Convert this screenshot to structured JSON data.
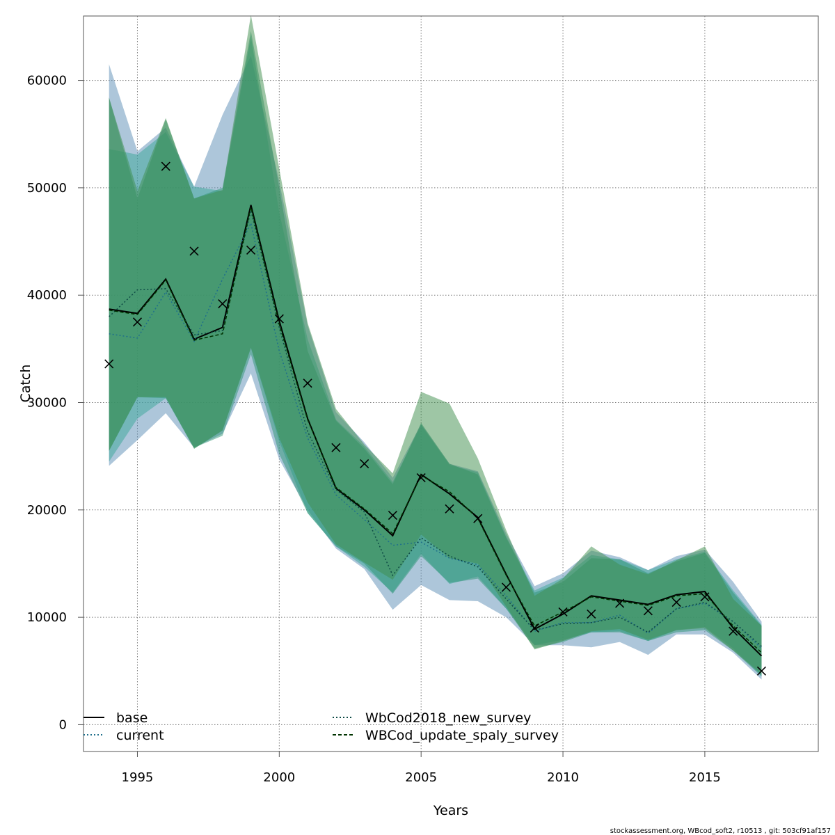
{
  "chart_data": {
    "type": "line",
    "xlabel": "Years",
    "ylabel": "Catch",
    "xlim": [
      1993.1,
      2019.0
    ],
    "ylim": [
      -2500,
      66000
    ],
    "xticks": [
      1995,
      2000,
      2005,
      2010,
      2015
    ],
    "yticks": [
      0,
      10000,
      20000,
      30000,
      40000,
      50000,
      60000
    ],
    "grid": true,
    "legend_position": "bottom",
    "x": [
      1994,
      1995,
      1996,
      1997,
      1998,
      1999,
      2000,
      2001,
      2002,
      2003,
      2004,
      2005,
      2006,
      2007,
      2008,
      2009,
      2010,
      2011,
      2012,
      2013,
      2014,
      2015,
      2016,
      2017
    ],
    "observed": {
      "marker": "x",
      "values": [
        33600,
        37500,
        52000,
        44100,
        39200,
        44200,
        37800,
        31800,
        25800,
        24300,
        19500,
        23000,
        20100,
        19200,
        12800,
        9000,
        10500,
        10300,
        11300,
        10600,
        11400,
        11900,
        8700,
        5000
      ]
    },
    "series": [
      {
        "name": "base",
        "line_style": "solid",
        "line_color": "#000000",
        "band_color": "#5b8db5",
        "values": [
          38700,
          38300,
          41500,
          35900,
          37000,
          48400,
          37600,
          28500,
          22000,
          20000,
          17600,
          23300,
          21500,
          19300,
          14000,
          8900,
          10300,
          12000,
          11600,
          11200,
          12100,
          12400,
          9000,
          6400
        ],
        "lower": [
          24100,
          26500,
          29000,
          25800,
          27100,
          32700,
          24700,
          20000,
          16400,
          14500,
          10700,
          13000,
          11600,
          11500,
          10000,
          7400,
          7400,
          7200,
          7700,
          6500,
          8400,
          8400,
          6700,
          4200
        ],
        "upper": [
          61500,
          53400,
          55600,
          50100,
          56800,
          62300,
          50600,
          37200,
          29100,
          26300,
          23000,
          28000,
          24300,
          23600,
          17800,
          12900,
          14100,
          16200,
          15600,
          14400,
          15700,
          16300,
          13300,
          9600
        ]
      },
      {
        "name": "current",
        "line_style": "dotted",
        "line_color": "#1f6f8b",
        "band_color": "#3aa597",
        "values": [
          36400,
          36000,
          40300,
          35700,
          41500,
          46700,
          34800,
          26700,
          21400,
          19100,
          16700,
          17000,
          15500,
          14900,
          12000,
          8700,
          9500,
          9500,
          10200,
          8500,
          10800,
          11300,
          9600,
          7100
        ],
        "lower": [
          24500,
          28500,
          30400,
          25700,
          27400,
          35100,
          26400,
          19700,
          16600,
          14700,
          12300,
          15900,
          13100,
          13800,
          10800,
          7400,
          7900,
          8600,
          8700,
          7800,
          8800,
          9100,
          7100,
          4500
        ],
        "upper": [
          53600,
          53100,
          55200,
          50100,
          49700,
          64100,
          47700,
          35900,
          28400,
          25900,
          22600,
          27900,
          24200,
          23500,
          17500,
          12500,
          13700,
          15800,
          15400,
          14400,
          15400,
          16100,
          12500,
          9300
        ]
      },
      {
        "name": "WbCod2018_new_survey",
        "line_style": "dotted",
        "line_color": "#0d4a45",
        "band_color": "#2e9474",
        "values": [
          38000,
          40500,
          40600,
          36300,
          36700,
          47900,
          37000,
          27300,
          21900,
          19800,
          13900,
          17400,
          15700,
          14700,
          11700,
          8800,
          9400,
          9500,
          10000,
          8600,
          10800,
          11400,
          9600,
          7300
        ],
        "lower": [
          25500,
          30500,
          30400,
          25800,
          26900,
          34500,
          25200,
          19700,
          16600,
          15000,
          12200,
          15700,
          13200,
          13600,
          10800,
          7100,
          7700,
          8600,
          8600,
          7800,
          8600,
          8800,
          6900,
          4500
        ],
        "upper": [
          58400,
          49000,
          56400,
          49000,
          50000,
          64600,
          50000,
          34800,
          28300,
          25700,
          22400,
          28100,
          24300,
          23300,
          17400,
          12300,
          13300,
          15500,
          15400,
          14100,
          15200,
          16000,
          12300,
          9200
        ]
      },
      {
        "name": "WBCod_update_spaly_survey",
        "line_style": "dashed",
        "line_color": "#003300",
        "band_color": "#3d8d4c",
        "values": [
          38600,
          38200,
          41400,
          35800,
          36400,
          48200,
          37300,
          28400,
          22100,
          20100,
          17800,
          23200,
          21700,
          19200,
          13900,
          9200,
          10500,
          11900,
          11500,
          11100,
          12000,
          12200,
          9200,
          6700
        ],
        "lower": [
          25500,
          30500,
          30500,
          25700,
          27400,
          35100,
          26700,
          20700,
          16800,
          15100,
          13500,
          17700,
          15500,
          15000,
          11000,
          7000,
          7800,
          8700,
          8900,
          7900,
          8800,
          9000,
          6900,
          4700
        ],
        "upper": [
          58400,
          49700,
          56500,
          49000,
          49800,
          66100,
          51800,
          37400,
          29400,
          26100,
          23400,
          31000,
          29900,
          24800,
          18100,
          12000,
          13600,
          16600,
          14900,
          14000,
          15300,
          16600,
          11700,
          9200
        ]
      }
    ],
    "legend": [
      "base",
      "current",
      "WbCod2018_new_survey",
      "WBCod_update_spaly_survey"
    ]
  },
  "footer": {
    "note": "stockassessment.org, WBcod_soft2, r10513 , git: 503cf91af157"
  }
}
